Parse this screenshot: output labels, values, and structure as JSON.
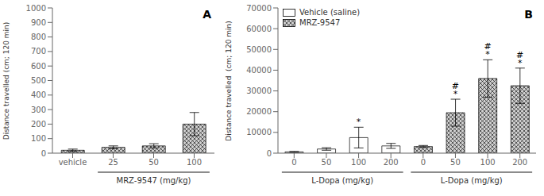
{
  "chart_data": [
    {
      "type": "bar",
      "title": "A",
      "categories": [
        "vehicle",
        "25",
        "50",
        "100"
      ],
      "values": [
        20,
        40,
        50,
        200
      ],
      "errors": [
        8,
        10,
        15,
        80
      ],
      "color": "#d0d0d0",
      "ylabel": "Distance travelled (cm; 120 min)",
      "xlabels": [
        {
          "text": "MRZ-9547 (mg/kg)",
          "from": 1,
          "to": 3
        }
      ],
      "ylim": [
        0,
        1000
      ],
      "yticks": [
        0,
        100,
        200,
        300,
        400,
        500,
        600,
        700,
        800,
        900,
        1000
      ]
    },
    {
      "type": "bar",
      "title": "B",
      "categories": [
        "0",
        "50",
        "100",
        "200",
        "0",
        "50",
        "100",
        "200"
      ],
      "series": [
        {
          "name": "Vehicle (saline)",
          "color": "#ffffff",
          "values": [
            600,
            2000,
            7500,
            3500,
            null,
            null,
            null,
            null
          ],
          "errors": [
            200,
            600,
            5000,
            1200,
            null,
            null,
            null,
            null
          ]
        },
        {
          "name": "MRZ-9547",
          "color": "#d0d0d0",
          "values": [
            null,
            null,
            null,
            null,
            3200,
            19500,
            36000,
            32500
          ],
          "errors": [
            null,
            null,
            null,
            null,
            500,
            6500,
            9000,
            8500
          ]
        }
      ],
      "ylabel": "Distance travelled  (cm; 120 min)",
      "xlabels": [
        {
          "text": "L-Dopa (mg/kg)",
          "from": 0,
          "to": 3
        },
        {
          "text": "L-Dopa (mg/kg)",
          "from": 4,
          "to": 7
        }
      ],
      "annotations": [
        {
          "text": "*",
          "index": 2
        },
        {
          "text": "#",
          "index": 5
        },
        {
          "text": "*",
          "index": 5
        },
        {
          "text": "#",
          "index": 6
        },
        {
          "text": "*",
          "index": 6
        },
        {
          "text": "#",
          "index": 7
        },
        {
          "text": "*",
          "index": 7
        }
      ],
      "legend": "upper left",
      "ylim": [
        0,
        70000
      ],
      "yticks": [
        0,
        10000,
        20000,
        30000,
        40000,
        50000,
        60000,
        70000
      ]
    }
  ]
}
